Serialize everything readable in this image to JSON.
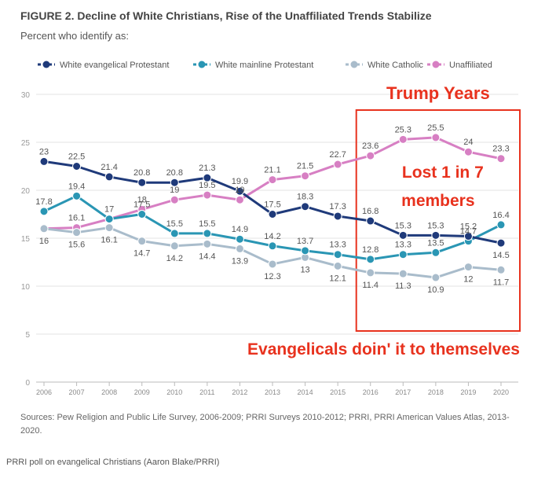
{
  "figure": {
    "title": "FIGURE 2.  Decline of White Christians, Rise of the Unaffiliated Trends Stabilize",
    "subtitle": "Percent who identify as:",
    "sources": "Sources: Pew Religion and Public Life Survey, 2006-2009; PRRI Surveys 2010-2012; PRRI, PRRI American Values Atlas, 2013-2020.",
    "caption": "PRRI poll on evangelical Christians (Aaron Blake/PRRI)"
  },
  "chart_data": {
    "type": "line",
    "x": [
      2006,
      2007,
      2008,
      2009,
      2010,
      2011,
      2012,
      2013,
      2014,
      2015,
      2016,
      2017,
      2018,
      2019,
      2020
    ],
    "ylim": [
      0,
      30
    ],
    "yticks": [
      0,
      5,
      10,
      15,
      20,
      25,
      30
    ],
    "grid": true,
    "legend_position": "top",
    "series": [
      {
        "name": "White evangelical Protestant",
        "color": "#1f3a7a",
        "values": [
          23,
          22.5,
          21.4,
          20.8,
          20.8,
          21.3,
          19.9,
          17.5,
          18.3,
          17.3,
          16.8,
          15.3,
          15.3,
          15.2,
          14.5
        ],
        "labels": [
          "23",
          "22.5",
          "21.4",
          "20.8",
          "20.8",
          "21.3",
          "19.9",
          "17.5",
          "18.3",
          "17.3",
          "16.8",
          "15.3",
          "15.3",
          "15.2",
          "14.5"
        ]
      },
      {
        "name": "White mainline Protestant",
        "color": "#2a96b4",
        "values": [
          17.8,
          19.4,
          17,
          17.5,
          15.5,
          15.5,
          14.9,
          14.2,
          13.7,
          13.3,
          12.8,
          13.3,
          13.5,
          14.7,
          16.4
        ],
        "labels": [
          "17.8",
          "19.4",
          "17",
          "17.5",
          "15.5",
          "15.5",
          "14.9",
          "14.2",
          "13.7",
          "13.3",
          "12.8",
          "13.3",
          "13.5",
          "14.7",
          "16.4"
        ]
      },
      {
        "name": "White Catholic",
        "color": "#a9bccb",
        "values": [
          16,
          15.6,
          16.1,
          14.7,
          14.2,
          14.4,
          13.9,
          12.3,
          13,
          12.1,
          11.4,
          11.3,
          10.9,
          12,
          11.7
        ],
        "labels": [
          "16",
          "15.6",
          "16.1",
          "14.7",
          "14.2",
          "14.4",
          "13.9",
          "12.3",
          "13",
          "12.1",
          "11.4",
          "11.3",
          "10.9",
          "12",
          "11.7"
        ]
      },
      {
        "name": "Unaffiliated",
        "color": "#d77fc3",
        "values": [
          16,
          16.1,
          17,
          18,
          19,
          19.5,
          19,
          21.1,
          21.5,
          22.7,
          23.6,
          25.3,
          25.5,
          24,
          23.3
        ],
        "labels": [
          "",
          "16.1",
          "",
          "18",
          "19",
          "19.5",
          "19",
          "21.1",
          "21.5",
          "22.7",
          "23.6",
          "25.3",
          "25.5",
          "24",
          "23.3"
        ]
      }
    ],
    "annotations": {
      "box_title": "Trump Years",
      "box_text_line1": "Lost 1 in 7",
      "box_text_line2": "members",
      "bottom_note": "Evangelicals doin' it to themselves",
      "color": "#e8321e",
      "box_years": [
        2016,
        2020
      ]
    }
  }
}
